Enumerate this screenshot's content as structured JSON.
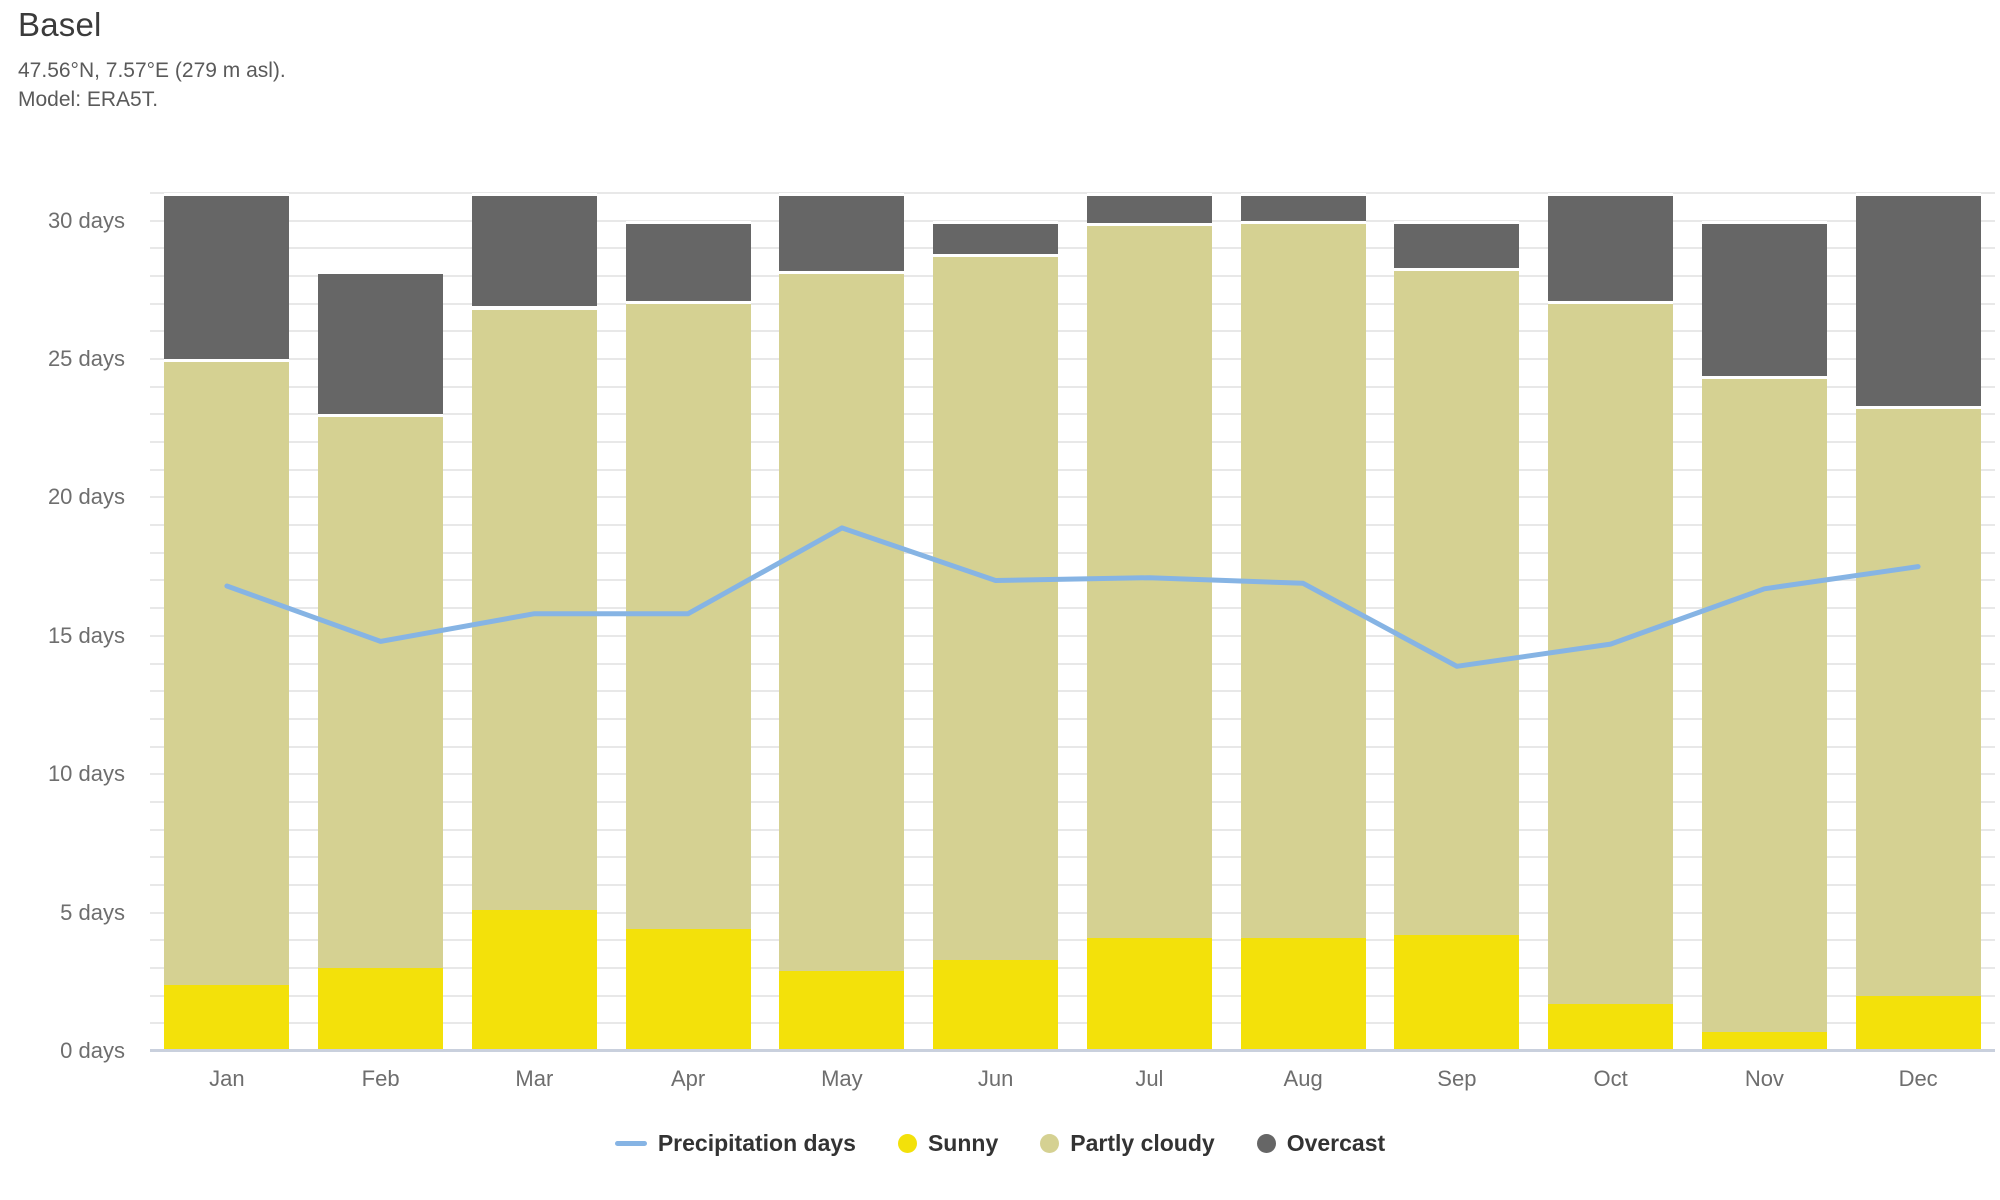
{
  "header": {
    "title": "Basel",
    "subtitle": "47.56°N, 7.57°E (279 m asl).",
    "model": "Model: ERA5T."
  },
  "chart_data": {
    "type": "bar",
    "subtype": "stacked-columns-with-line-overlay",
    "title": "Basel",
    "categories": [
      "Jan",
      "Feb",
      "Mar",
      "Apr",
      "May",
      "Jun",
      "Jul",
      "Aug",
      "Sep",
      "Oct",
      "Nov",
      "Dec"
    ],
    "series": [
      {
        "name": "Sunny",
        "type": "bar",
        "color": "#f3e10a",
        "values": [
          2.4,
          3.0,
          5.1,
          4.4,
          2.9,
          3.3,
          4.1,
          4.1,
          4.2,
          1.7,
          0.7,
          2.0
        ]
      },
      {
        "name": "Partly cloudy",
        "type": "bar",
        "color": "#d5d192",
        "values": [
          22.6,
          20.0,
          21.8,
          22.7,
          25.3,
          25.5,
          25.8,
          25.9,
          24.1,
          25.4,
          23.7,
          21.3
        ]
      },
      {
        "name": "Overcast",
        "type": "bar",
        "color": "#666666",
        "values": [
          6.0,
          5.2,
          4.1,
          2.9,
          2.8,
          1.2,
          1.1,
          1.0,
          1.7,
          3.9,
          5.6,
          7.7
        ]
      },
      {
        "name": "Precipitation days",
        "type": "line",
        "color": "#86b4e4",
        "values": [
          16.8,
          14.8,
          15.8,
          15.8,
          18.9,
          17.0,
          17.1,
          16.9,
          13.9,
          14.7,
          16.7,
          17.5
        ]
      }
    ],
    "bar_totals": [
      31,
      28.2,
      31,
      30,
      31,
      30,
      31,
      31,
      30,
      31,
      30,
      31
    ],
    "ylim": [
      0,
      31
    ],
    "yticks": [
      0,
      5,
      10,
      15,
      20,
      25,
      30
    ],
    "ytick_labels": [
      "0 days",
      "5 days",
      "10 days",
      "15 days",
      "20 days",
      "25 days",
      "30 days"
    ],
    "grid": "horizontal, minor line every 1 day, baseline highlighted",
    "legend_position": "bottom-center",
    "xlabel": "",
    "ylabel": "days"
  },
  "legend": {
    "items": [
      {
        "label": "Precipitation days",
        "marker": "line",
        "color": "#86b4e4"
      },
      {
        "label": "Sunny",
        "marker": "circle",
        "color": "#f3e10a"
      },
      {
        "label": "Partly cloudy",
        "marker": "circle",
        "color": "#d5d192"
      },
      {
        "label": "Overcast",
        "marker": "circle",
        "color": "#666666"
      }
    ]
  },
  "colors": {
    "grid": "#e8e8e8",
    "baseline": "#c9d0dd",
    "axis_text": "#6e6e6e",
    "title_text": "#3b3b3b",
    "subtitle_text": "#5a5a5a"
  }
}
